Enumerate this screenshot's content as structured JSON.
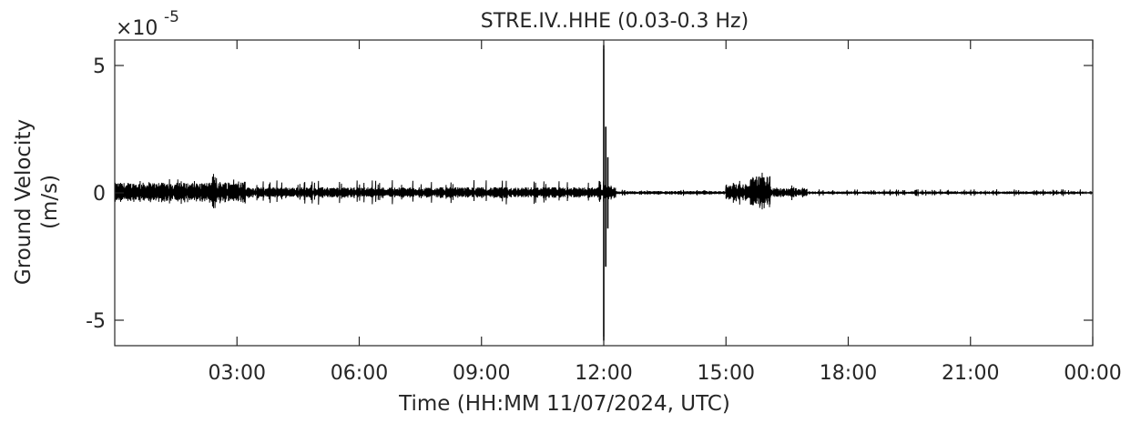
{
  "chart_data": {
    "type": "line",
    "title": "STRE.IV..HHE  (0.03-0.3  Hz)",
    "xlabel": "Time  (HH:MM  11/07/2024, UTC)",
    "ylabel_line1": "Ground Velocity",
    "ylabel_line2": "(m/s)",
    "y_exponent_label": "×10",
    "y_exponent": "-5",
    "xlim": [
      0,
      24
    ],
    "ylim": [
      -6,
      6
    ],
    "x_unit": "hours",
    "x_ticks": [
      {
        "value": 3,
        "label": "03:00"
      },
      {
        "value": 6,
        "label": "06:00"
      },
      {
        "value": 9,
        "label": "09:00"
      },
      {
        "value": 12,
        "label": "12:00"
      },
      {
        "value": 15,
        "label": "15:00"
      },
      {
        "value": 18,
        "label": "18:00"
      },
      {
        "value": 21,
        "label": "21:00"
      },
      {
        "value": 24,
        "label": "00:00"
      }
    ],
    "y_ticks": [
      {
        "value": -5,
        "label": "-5"
      },
      {
        "value": 0,
        "label": "0"
      },
      {
        "value": 5,
        "label": "5"
      }
    ],
    "grid": false,
    "series": [
      {
        "color": "#000000",
        "segments": [
          {
            "x_start": 0.0,
            "x_end": 2.4,
            "amplitude": 0.4,
            "spike": 0.55
          },
          {
            "x_start": 2.4,
            "x_end": 2.5,
            "amplitude": 0.8,
            "spike": 1.05
          },
          {
            "x_start": 2.5,
            "x_end": 3.2,
            "amplitude": 0.45,
            "spike": 0.55
          },
          {
            "x_start": 3.2,
            "x_end": 12.0,
            "amplitude": 0.22,
            "spike": 0.5
          },
          {
            "x_start": 12.0,
            "x_end": 12.3,
            "amplitude": 0.3,
            "spike": 0.5
          },
          {
            "x_start": 12.3,
            "x_end": 15.0,
            "amplitude": 0.07,
            "spike": 0.12
          },
          {
            "x_start": 15.0,
            "x_end": 15.6,
            "amplitude": 0.35,
            "spike": 0.55
          },
          {
            "x_start": 15.6,
            "x_end": 16.1,
            "amplitude": 0.65,
            "spike": 0.9
          },
          {
            "x_start": 16.1,
            "x_end": 17.0,
            "amplitude": 0.18,
            "spike": 0.3
          },
          {
            "x_start": 17.0,
            "x_end": 24.0,
            "amplitude": 0.06,
            "spike": 0.14
          }
        ],
        "events": [
          {
            "x": 12.0,
            "y_max": 5.8,
            "y_min": -5.8
          },
          {
            "x": 12.05,
            "y_max": 2.6,
            "y_min": -2.9
          },
          {
            "x": 12.1,
            "y_max": 1.4,
            "y_min": -1.4
          }
        ]
      }
    ]
  }
}
